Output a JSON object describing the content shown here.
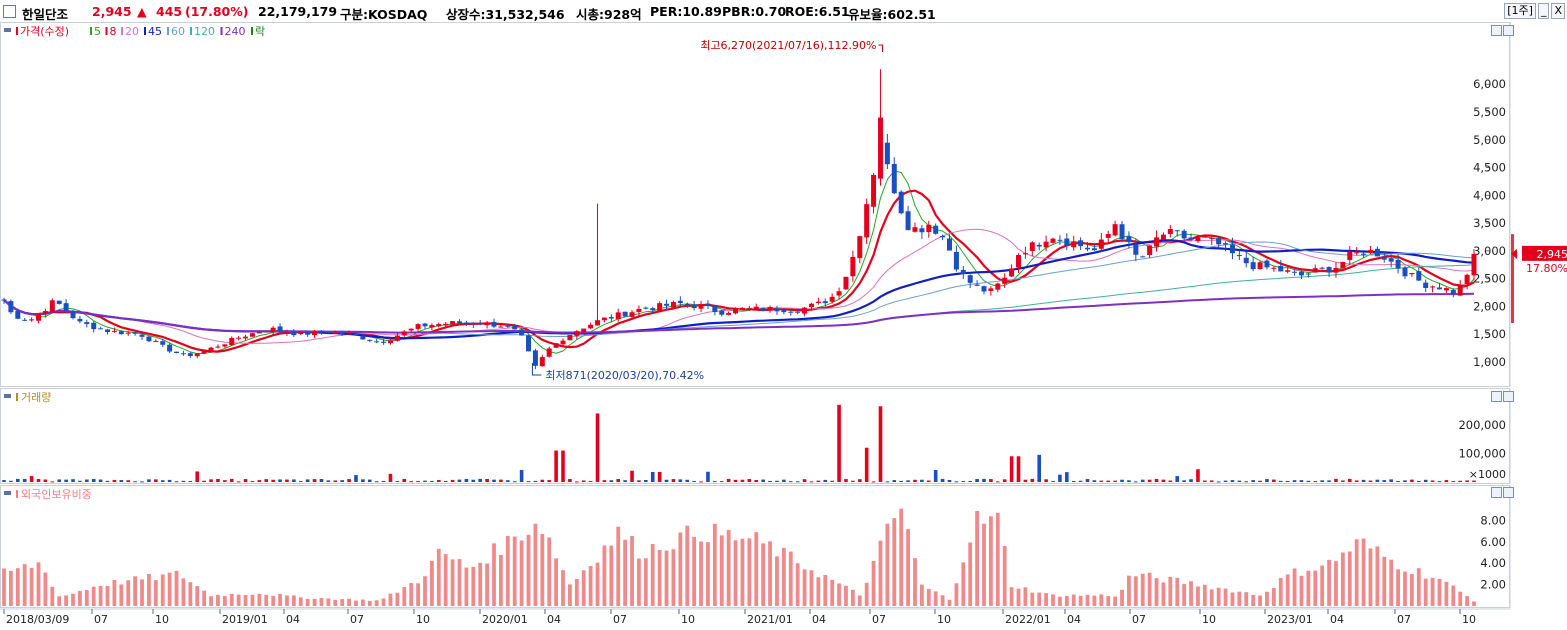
{
  "header": {
    "stock_name": "한일단조",
    "price": "2,945",
    "change_symbol": "▲",
    "change": "445",
    "change_pct": "(17.80%)",
    "volume": "22,179,179",
    "market": "구분:KOSDAQ",
    "shares": "상장수:31,532,546",
    "market_cap": "시총:928억",
    "per": "PER:10.89",
    "pbr": "PBR:0.70",
    "roe": "ROE:6.51",
    "reserve": "유보율:602.51",
    "period_button": "[1주]",
    "minimize_button": "_",
    "close_button": "X"
  },
  "price_panel": {
    "legend": [
      "가격(수정)",
      "5",
      "8",
      "20",
      "45",
      "60",
      "120",
      "240",
      "락"
    ],
    "legend_colors": [
      "#e4001c",
      "#2aa52a",
      "#e4001c",
      "#e070c0",
      "#1020c0",
      "#6aa0d0",
      "#40b0a0",
      "#8030c0",
      "#208020"
    ],
    "high_note": "최고6,270(2021/07/16),112.90%",
    "low_note": "최저871(2020/03/20),70.42%",
    "y_ticks": [
      "6,000",
      "5,500",
      "5,000",
      "4,500",
      "4,000",
      "3,500",
      "3,000",
      "2,500",
      "2,000",
      "1,500",
      "1,000"
    ],
    "current_price_label": "2,945",
    "current_pct_label": "17.80%"
  },
  "volume_panel": {
    "legend": "거래량",
    "y_ticks": [
      "200,000",
      "100,000"
    ],
    "unit": "×1000"
  },
  "foreign_panel": {
    "legend": "외국인보유비중",
    "y_ticks": [
      "8.00",
      "6.00",
      "4.00",
      "2.00"
    ]
  },
  "x_axis": [
    "2018/03/09",
    "07",
    "10",
    "2019/01",
    "04",
    "07",
    "10",
    "2020/01",
    "04",
    "07",
    "10",
    "2021/01",
    "04",
    "07",
    "10",
    "2022/01",
    "04",
    "07",
    "10",
    "2023/01",
    "04",
    "07",
    "10"
  ],
  "chart_data": {
    "type": "candlestick",
    "price_anchors": [
      [
        0,
        2250
      ],
      [
        12,
        1850
      ],
      [
        30,
        1750
      ],
      [
        55,
        2100
      ],
      [
        80,
        1700
      ],
      [
        110,
        1550
      ],
      [
        140,
        1500
      ],
      [
        165,
        1250
      ],
      [
        185,
        1100
      ],
      [
        205,
        1200
      ],
      [
        240,
        1450
      ],
      [
        270,
        1600
      ],
      [
        300,
        1500
      ],
      [
        330,
        1550
      ],
      [
        360,
        1450
      ],
      [
        380,
        1350
      ],
      [
        400,
        1500
      ],
      [
        420,
        1650
      ],
      [
        450,
        1700
      ],
      [
        480,
        1700
      ],
      [
        505,
        1650
      ],
      [
        520,
        1500
      ],
      [
        535,
        900
      ],
      [
        550,
        1250
      ],
      [
        565,
        1450
      ],
      [
        580,
        1600
      ],
      [
        600,
        1750
      ],
      [
        620,
        1850
      ],
      [
        640,
        1950
      ],
      [
        660,
        2000
      ],
      [
        680,
        2050
      ],
      [
        700,
        2000
      ],
      [
        720,
        1900
      ],
      [
        740,
        1950
      ],
      [
        760,
        1950
      ],
      [
        780,
        1950
      ],
      [
        800,
        1950
      ],
      [
        820,
        2050
      ],
      [
        835,
        2200
      ],
      [
        850,
        2700
      ],
      [
        862,
        3500
      ],
      [
        872,
        4300
      ],
      [
        880,
        5000
      ],
      [
        885,
        4600
      ],
      [
        893,
        4200
      ],
      [
        900,
        3800
      ],
      [
        910,
        3400
      ],
      [
        920,
        3400
      ],
      [
        930,
        3500
      ],
      [
        945,
        3200
      ],
      [
        960,
        2600
      ],
      [
        975,
        2350
      ],
      [
        990,
        2250
      ],
      [
        1005,
        2500
      ],
      [
        1020,
        3000
      ],
      [
        1035,
        3100
      ],
      [
        1050,
        3300
      ],
      [
        1065,
        3200
      ],
      [
        1080,
        3100
      ],
      [
        1095,
        3000
      ],
      [
        1105,
        3200
      ],
      [
        1115,
        3500
      ],
      [
        1125,
        3200
      ],
      [
        1135,
        2900
      ],
      [
        1145,
        2900
      ],
      [
        1160,
        3300
      ],
      [
        1175,
        3300
      ],
      [
        1190,
        3200
      ],
      [
        1205,
        3200
      ],
      [
        1220,
        3100
      ],
      [
        1235,
        2900
      ],
      [
        1250,
        2750
      ],
      [
        1265,
        2700
      ],
      [
        1280,
        2650
      ],
      [
        1300,
        2550
      ],
      [
        1320,
        2650
      ],
      [
        1335,
        2700
      ],
      [
        1350,
        2900
      ],
      [
        1365,
        3000
      ],
      [
        1380,
        2950
      ],
      [
        1395,
        2750
      ],
      [
        1410,
        2550
      ],
      [
        1425,
        2400
      ],
      [
        1440,
        2350
      ],
      [
        1455,
        2250
      ],
      [
        1465,
        2450
      ],
      [
        1472,
        2945
      ]
    ],
    "volume_spikes_x1000": [
      {
        "date": "2019/12",
        "value": 75000
      },
      {
        "date": "2020/05",
        "value": 110000
      },
      {
        "date": "2020/06",
        "value": 240000
      },
      {
        "date": "2021/07",
        "value": 270000
      },
      {
        "date": "2021/07",
        "value": 265000
      },
      {
        "date": "2022/03",
        "value": 95000
      },
      {
        "date": "2022/06",
        "value": 90000
      }
    ],
    "foreign_ratio_pct_peak": 9.3,
    "ylim_price": [
      800,
      6400
    ],
    "ylim_volume_x1000": [
      0,
      280000
    ],
    "ylim_foreign_pct": [
      0,
      10
    ]
  }
}
